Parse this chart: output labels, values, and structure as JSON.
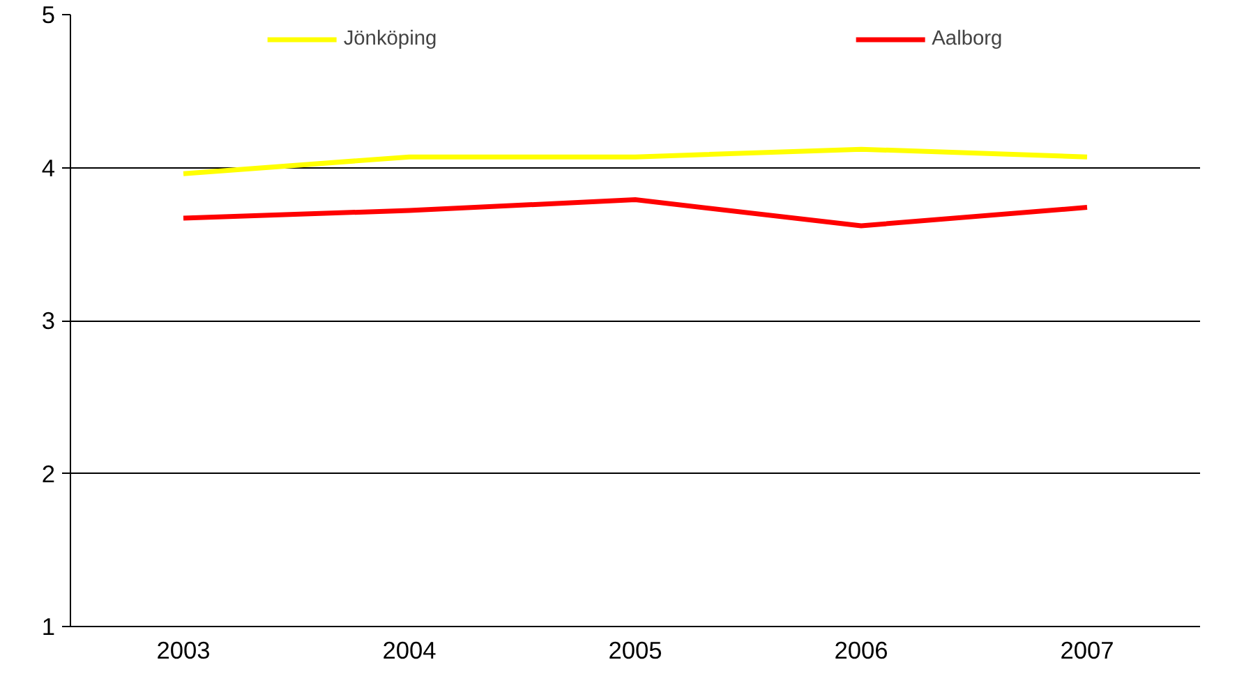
{
  "chart_data": {
    "type": "line",
    "categories": [
      "2003",
      "2004",
      "2005",
      "2006",
      "2007"
    ],
    "series": [
      {
        "name": "Jönköping",
        "color": "#ffff00",
        "values": [
          3.96,
          4.07,
          4.07,
          4.12,
          4.07
        ]
      },
      {
        "name": "Aalborg",
        "color": "#ff0000",
        "values": [
          3.67,
          3.72,
          3.79,
          3.62,
          3.74
        ]
      }
    ],
    "ylim": [
      1,
      5
    ],
    "yticks": [
      1,
      2,
      3,
      4,
      5
    ],
    "grid": "y",
    "legend": "top"
  }
}
